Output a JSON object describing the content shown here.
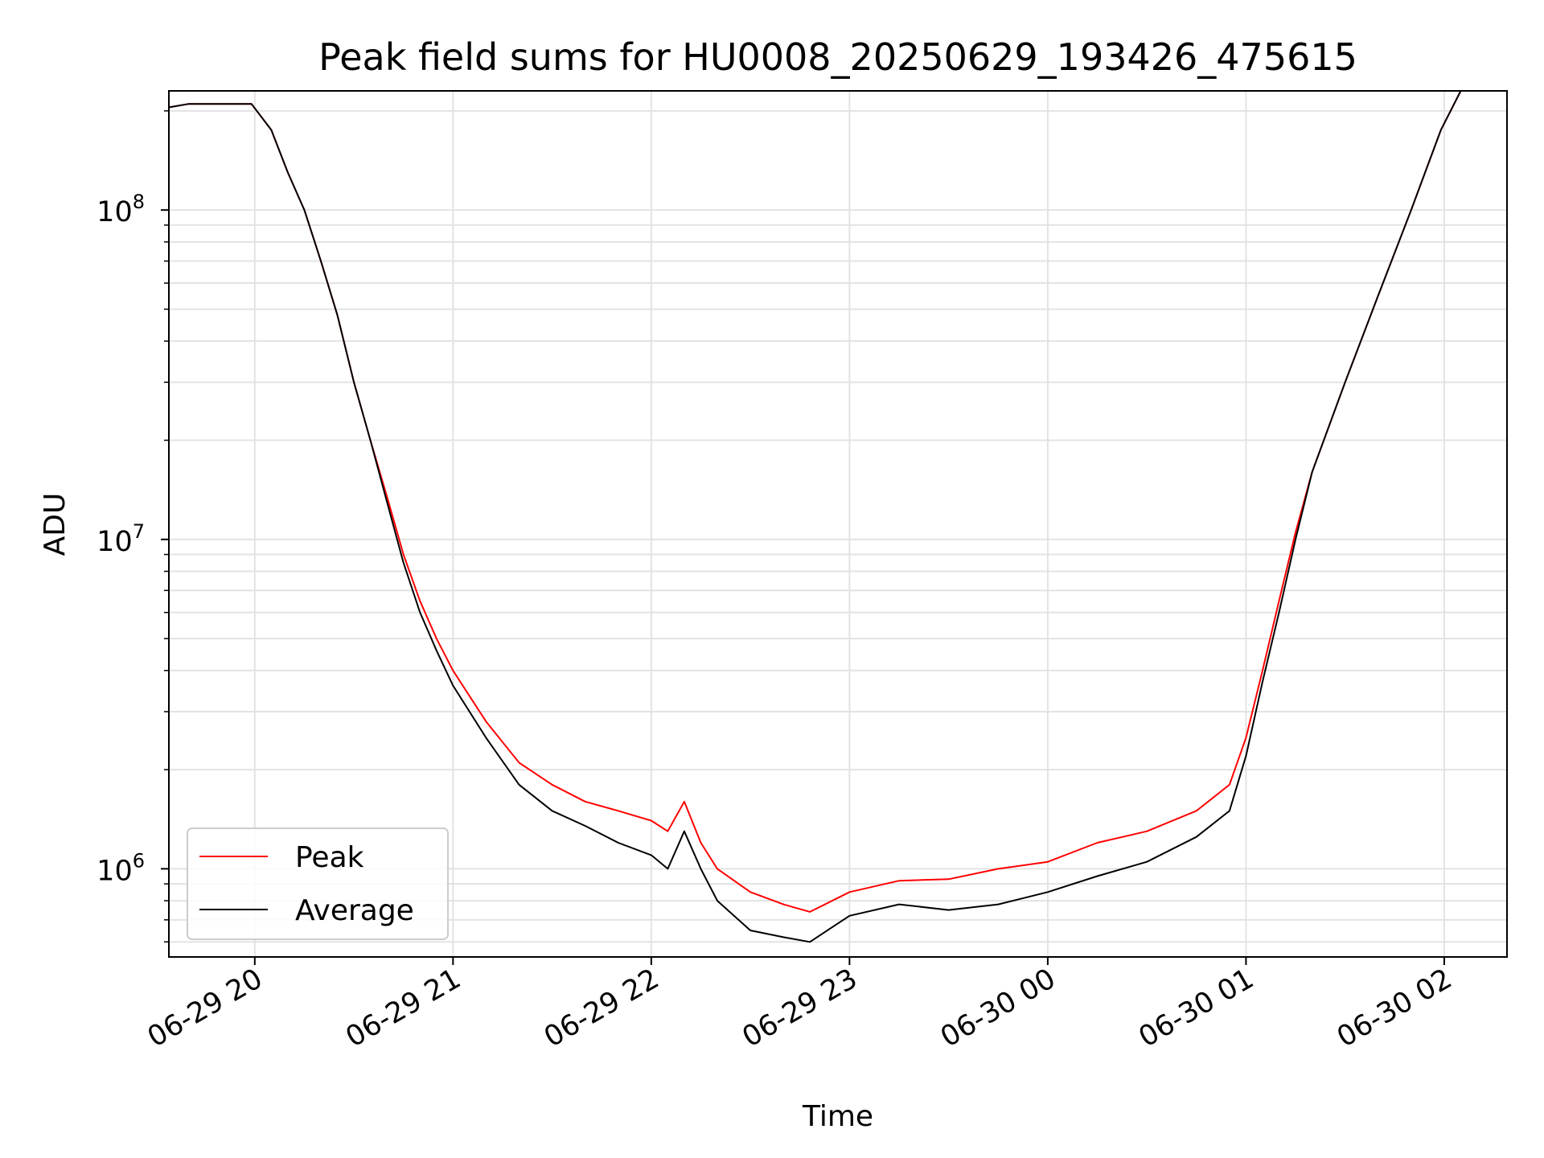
{
  "chart_data": {
    "type": "line",
    "title": "Peak field sums for HU0008_20250629_193426_475615",
    "xlabel": "Time",
    "ylabel": "ADU",
    "yscale": "log",
    "ylim": [
      540000,
      230000000
    ],
    "xlim": [
      "2025-06-29 19:34",
      "2025-06-30 02:19"
    ],
    "grid": true,
    "legend_position": "lower-left",
    "x_ticks": [
      {
        "value": "2025-06-29 20:00",
        "label": "06-29 20"
      },
      {
        "value": "2025-06-29 21:00",
        "label": "06-29 21"
      },
      {
        "value": "2025-06-29 22:00",
        "label": "06-29 22"
      },
      {
        "value": "2025-06-29 23:00",
        "label": "06-29 23"
      },
      {
        "value": "2025-06-30 00:00",
        "label": "06-30 00"
      },
      {
        "value": "2025-06-30 01:00",
        "label": "06-30 01"
      },
      {
        "value": "2025-06-30 02:00",
        "label": "06-30 02"
      }
    ],
    "y_ticks": [
      {
        "value": 1000000,
        "base": "10",
        "exp": "6"
      },
      {
        "value": 10000000,
        "base": "10",
        "exp": "7"
      },
      {
        "value": 100000000,
        "base": "10",
        "exp": "8"
      }
    ],
    "x": [
      "2025-06-29 19:34",
      "2025-06-29 19:40",
      "2025-06-29 19:50",
      "2025-06-29 19:59",
      "2025-06-29 20:05",
      "2025-06-29 20:10",
      "2025-06-29 20:15",
      "2025-06-29 20:20",
      "2025-06-29 20:25",
      "2025-06-29 20:30",
      "2025-06-29 20:35",
      "2025-06-29 20:40",
      "2025-06-29 20:45",
      "2025-06-29 20:50",
      "2025-06-29 20:55",
      "2025-06-29 21:00",
      "2025-06-29 21:10",
      "2025-06-29 21:20",
      "2025-06-29 21:30",
      "2025-06-29 21:40",
      "2025-06-29 21:50",
      "2025-06-29 22:00",
      "2025-06-29 22:05",
      "2025-06-29 22:10",
      "2025-06-29 22:15",
      "2025-06-29 22:20",
      "2025-06-29 22:30",
      "2025-06-29 22:40",
      "2025-06-29 22:48",
      "2025-06-29 23:00",
      "2025-06-29 23:15",
      "2025-06-29 23:30",
      "2025-06-29 23:45",
      "2025-06-30 00:00",
      "2025-06-30 00:15",
      "2025-06-30 00:30",
      "2025-06-30 00:45",
      "2025-06-30 00:55",
      "2025-06-30 01:00",
      "2025-06-30 01:05",
      "2025-06-30 01:10",
      "2025-06-30 01:15",
      "2025-06-30 01:20",
      "2025-06-30 01:30",
      "2025-06-30 01:40",
      "2025-06-30 01:50",
      "2025-06-30 01:59",
      "2025-06-30 02:05",
      "2025-06-30 02:19"
    ],
    "series": [
      {
        "name": "Peak",
        "color": "#ff0000",
        "values": [
          205000000,
          210000000,
          210000000,
          210000000,
          175000000,
          130000000,
          100000000,
          70000000,
          48000000,
          30000000,
          20000000,
          13500000,
          9000000,
          6500000,
          5000000,
          4000000,
          2800000,
          2100000,
          1800000,
          1600000,
          1500000,
          1400000,
          1300000,
          1600000,
          1200000,
          1000000,
          850000,
          780000,
          740000,
          850000,
          920000,
          930000,
          1000000,
          1050000,
          1200000,
          1300000,
          1500000,
          1800000,
          2500000,
          4000000,
          6500000,
          10500000,
          16000000,
          30000000,
          55000000,
          100000000,
          175000000,
          230000000,
          230000000
        ]
      },
      {
        "name": "Average",
        "color": "#000000",
        "values": [
          205000000,
          210000000,
          210000000,
          210000000,
          175000000,
          130000000,
          100000000,
          70000000,
          48000000,
          30000000,
          20000000,
          13000000,
          8500000,
          6000000,
          4600000,
          3600000,
          2500000,
          1800000,
          1500000,
          1350000,
          1200000,
          1100000,
          1000000,
          1300000,
          1000000,
          800000,
          650000,
          620000,
          600000,
          720000,
          780000,
          750000,
          780000,
          850000,
          950000,
          1050000,
          1250000,
          1500000,
          2200000,
          3700000,
          6000000,
          10000000,
          16000000,
          30000000,
          55000000,
          100000000,
          175000000,
          230000000,
          230000000
        ]
      }
    ]
  }
}
